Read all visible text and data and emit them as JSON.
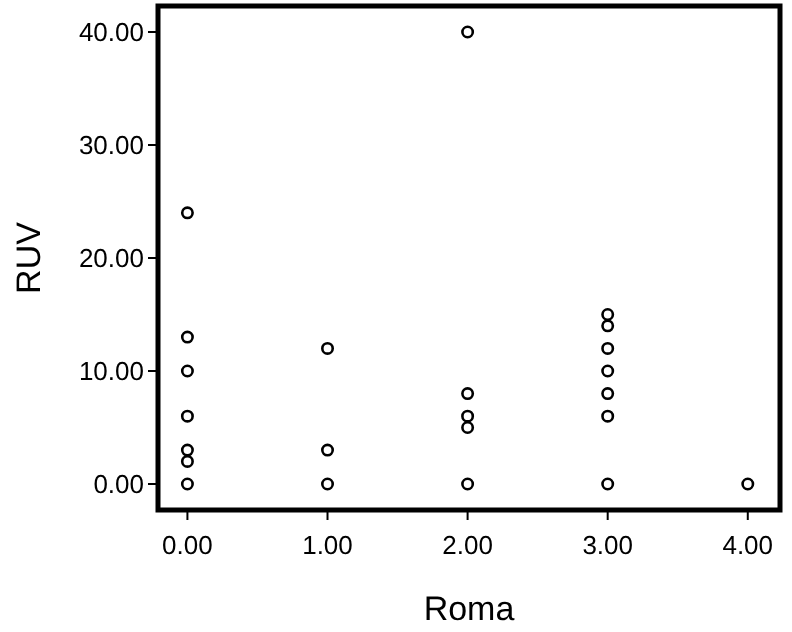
{
  "chart_data": {
    "type": "scatter",
    "xlabel": "Roma",
    "ylabel": "RUV",
    "x": [
      0,
      0,
      0,
      0,
      0,
      0,
      0,
      1,
      1,
      1,
      2,
      2,
      2,
      2,
      2,
      3,
      3,
      3,
      3,
      3,
      3,
      3,
      4
    ],
    "values": [
      24,
      13,
      10,
      6,
      3,
      2,
      0,
      12,
      3,
      0,
      40,
      8,
      6,
      5,
      0,
      15,
      14,
      12,
      10,
      8,
      6,
      0,
      0
    ],
    "color": "#000000",
    "marker": "circle",
    "xlim": [
      -0.21,
      4.23
    ],
    "ylim": [
      -2.3,
      42.3
    ],
    "xticks": [
      {
        "value": 0,
        "label": "0.00"
      },
      {
        "value": 1,
        "label": "1.00"
      },
      {
        "value": 2,
        "label": "2.00"
      },
      {
        "value": 3,
        "label": "3.00"
      },
      {
        "value": 4,
        "label": "4.00"
      }
    ],
    "yticks": [
      {
        "value": 0,
        "label": "0.00"
      },
      {
        "value": 10,
        "label": "10.00"
      },
      {
        "value": 20,
        "label": "20.00"
      },
      {
        "value": 30,
        "label": "30.00"
      },
      {
        "value": 40,
        "label": "40.00"
      }
    ],
    "grid": false
  }
}
